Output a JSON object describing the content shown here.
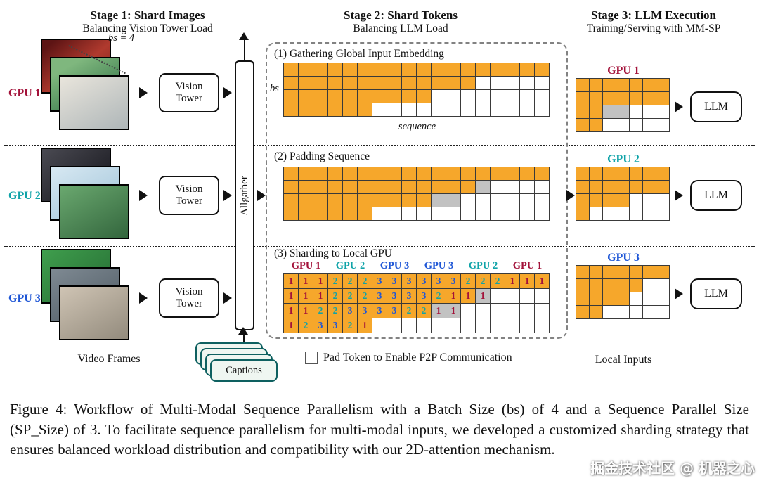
{
  "headers": {
    "stage1": {
      "title": "Stage 1: Shard Images",
      "subtitle": "Balancing Vision Tower Load"
    },
    "stage2": {
      "title": "Stage 2: Shard Tokens",
      "subtitle": "Balancing LLM Load"
    },
    "stage3": {
      "title": "Stage 3: LLM Execution",
      "subtitle": "Training/Serving with MM-SP"
    }
  },
  "colors": {
    "token": "#F6A72B",
    "pad": "#C2C2C2",
    "gpu1": "#A3123A",
    "gpu2": "#0FA3A8",
    "gpu3": "#1E56D6"
  },
  "stage1": {
    "bs_label": "bs = 4",
    "vision_tower_label": "Vision Tower",
    "allgather_label": "Allgather",
    "video_frames_label": "Video Frames",
    "captions_label": "Captions",
    "rows": [
      {
        "gpu_label": "GPU 1"
      },
      {
        "gpu_label": "GPU 2"
      },
      {
        "gpu_label": "GPU 3"
      }
    ]
  },
  "stage2": {
    "sections": [
      {
        "label": "(1) Gathering Global Input Embedding",
        "axis_left": "bs",
        "axis_bottom": "sequence",
        "grid": {
          "cols": 18,
          "rows": [
            {
              "tokens": 18,
              "pads": 0
            },
            {
              "tokens": 13,
              "pads": 0
            },
            {
              "tokens": 10,
              "pads": 0
            },
            {
              "tokens": 6,
              "pads": 0
            }
          ]
        }
      },
      {
        "label": "(2) Padding Sequence",
        "grid": {
          "cols": 18,
          "rows": [
            {
              "tokens": 18,
              "pads": 0
            },
            {
              "tokens": 13,
              "pads": 1
            },
            {
              "tokens": 10,
              "pads": 2
            },
            {
              "tokens": 6,
              "pads": 0
            }
          ]
        }
      },
      {
        "label": "(3) Sharding to Local GPU",
        "headers": [
          {
            "label": "GPU 1",
            "gpu": 1
          },
          {
            "label": "GPU 2",
            "gpu": 2
          },
          {
            "label": "GPU 3",
            "gpu": 3
          },
          {
            "label": "GPU 3",
            "gpu": 3
          },
          {
            "label": "GPU 2",
            "gpu": 2
          },
          {
            "label": "GPU 1",
            "gpu": 1
          }
        ],
        "grid": {
          "cols": 18,
          "rows": [
            {
              "tokens": [
                1,
                1,
                1,
                2,
                2,
                2,
                3,
                3,
                3,
                3,
                3,
                3,
                2,
                2,
                2,
                1,
                1,
                1
              ],
              "pad_positions": []
            },
            {
              "tokens": [
                1,
                1,
                1,
                2,
                2,
                2,
                3,
                3,
                3,
                3,
                2,
                1,
                1,
                1
              ],
              "pad_positions": [
                13
              ]
            },
            {
              "tokens": [
                1,
                1,
                2,
                2,
                3,
                3,
                3,
                3,
                2,
                2,
                1,
                1
              ],
              "pad_positions": [
                10,
                11
              ]
            },
            {
              "tokens": [
                1,
                2,
                3,
                3,
                2,
                1
              ],
              "pad_positions": []
            }
          ]
        }
      }
    ],
    "legend_label": "Pad Token to Enable P2P Communication"
  },
  "stage3": {
    "local_inputs_label": "Local Inputs",
    "units": [
      {
        "gpu_label": "GPU 1",
        "gpu": 1,
        "llm_label": "LLM",
        "grid_rows": [
          "OOOOOOO",
          "OOOOOOO",
          "OOGGWWW",
          "OOWWWWW"
        ]
      },
      {
        "gpu_label": "GPU 2",
        "gpu": 2,
        "llm_label": "LLM",
        "grid_rows": [
          "OOOOOOO",
          "OOOOOOO",
          "OOOOWWW",
          "OWWWWWW"
        ]
      },
      {
        "gpu_label": "GPU 3",
        "gpu": 3,
        "llm_label": "LLM",
        "grid_rows": [
          "OOOOOOO",
          "OOOOOWW",
          "OOOOWWW",
          "OOWWWWW"
        ]
      }
    ]
  },
  "caption": "Figure 4: Workflow of Multi-Modal Sequence Parallelism with a Batch Size (bs) of 4 and a Sequence Parallel Size (SP_Size) of 3. To facilitate sequence parallelism for multi-modal inputs, we developed a customized sharding strategy that ensures balanced workload distribution and compatibility with our 2D-attention mechanism.",
  "watermark": "掘金技术社区 @ 机器之心"
}
